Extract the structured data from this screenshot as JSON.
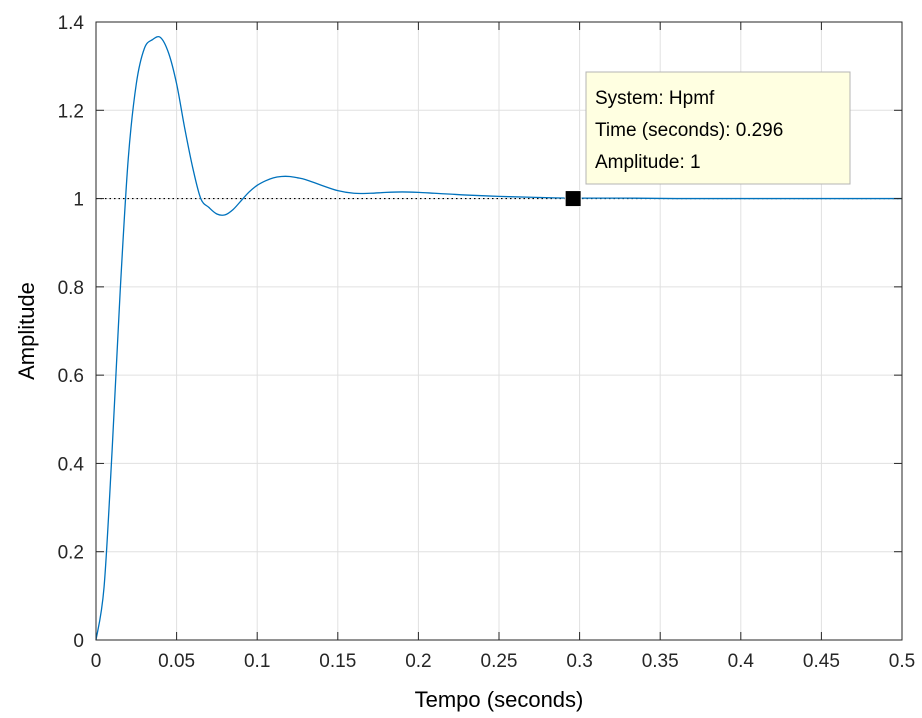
{
  "chart_data": {
    "type": "line",
    "title": "",
    "xlabel": "Tempo (seconds)",
    "ylabel": "Amplitude",
    "xlim": [
      0,
      0.5
    ],
    "ylim": [
      0,
      1.4
    ],
    "xticks": [
      "0",
      "0.05",
      "0.1",
      "0.15",
      "0.2",
      "0.25",
      "0.3",
      "0.35",
      "0.4",
      "0.45",
      "0.5"
    ],
    "yticks": [
      "0",
      "0.2",
      "0.4",
      "0.6",
      "0.8",
      "1",
      "1.2",
      "1.4"
    ],
    "grid": true,
    "reference_line": {
      "y": 1,
      "style": "dotted",
      "color": "#000000"
    },
    "series": [
      {
        "color": "#0072BD",
        "x": [
          0,
          0.005,
          0.01,
          0.015,
          0.02,
          0.025,
          0.03,
          0.035,
          0.04,
          0.045,
          0.05,
          0.055,
          0.06,
          0.065,
          0.07,
          0.075,
          0.08,
          0.085,
          0.09,
          0.095,
          0.1,
          0.105,
          0.11,
          0.115,
          0.12,
          0.125,
          0.13,
          0.14,
          0.15,
          0.16,
          0.17,
          0.18,
          0.19,
          0.2,
          0.21,
          0.22,
          0.23,
          0.25,
          0.27,
          0.296,
          0.33,
          0.36,
          0.4,
          0.45,
          0.5
        ],
        "y": [
          0,
          0.12,
          0.43,
          0.79,
          1.09,
          1.26,
          1.34,
          1.36,
          1.365,
          1.33,
          1.26,
          1.16,
          1.07,
          1.0,
          0.98,
          0.965,
          0.963,
          0.975,
          0.995,
          1.015,
          1.03,
          1.04,
          1.047,
          1.05,
          1.05,
          1.047,
          1.043,
          1.03,
          1.018,
          1.012,
          1.012,
          1.014,
          1.015,
          1.014,
          1.012,
          1.01,
          1.008,
          1.005,
          1.003,
          1.001,
          1.001,
          1.0,
          1.0,
          1.0,
          1.0
        ]
      }
    ],
    "datatip": {
      "x": 0.296,
      "y": 1,
      "lines": [
        "System: Hpmf",
        "Time (seconds): 0.296",
        "Amplitude: 1"
      ]
    }
  }
}
